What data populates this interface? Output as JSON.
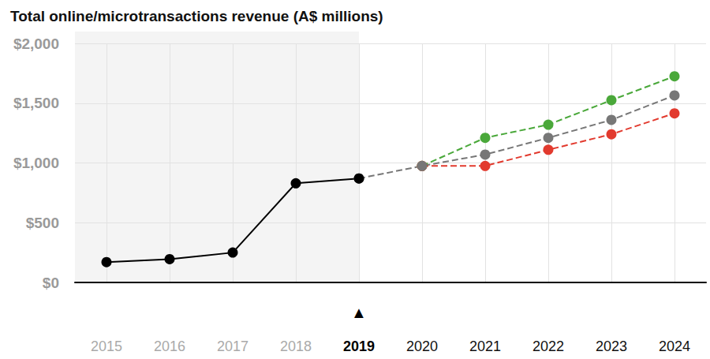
{
  "chart_data": {
    "type": "line",
    "title": "Total online/microtransactions revenue (A$ millions)",
    "categories": [
      "2015",
      "2016",
      "2017",
      "2018",
      "2019",
      "2020",
      "2021",
      "2022",
      "2023",
      "2024"
    ],
    "series": [
      {
        "color": "#4aa83a",
        "line_style": "dashed",
        "marker": "circle",
        "values": [
          null,
          null,
          null,
          null,
          null,
          975,
          1210,
          1320,
          1525,
          1725
        ]
      },
      {
        "color": "#e23a2e",
        "line_style": "dashed",
        "marker": "circle",
        "values": [
          null,
          null,
          null,
          null,
          null,
          975,
          975,
          1110,
          1240,
          1415
        ]
      },
      {
        "color": "#777777",
        "line_style": "dashed",
        "marker": "circle",
        "values": [
          null,
          null,
          null,
          null,
          870,
          975,
          1070,
          1210,
          1360,
          1565
        ]
      },
      {
        "color": "#000000",
        "line_style": "solid",
        "marker": "circle",
        "values": [
          170,
          195,
          250,
          830,
          870,
          null,
          null,
          null,
          null,
          null
        ]
      }
    ],
    "ylim": [
      0,
      2000
    ],
    "yticks": [
      {
        "value": 0,
        "label": "$0"
      },
      {
        "value": 500,
        "label": "$500"
      },
      {
        "value": 1000,
        "label": "$1,000"
      },
      {
        "value": 1500,
        "label": "$1,500"
      },
      {
        "value": 2000,
        "label": "$2,000"
      }
    ],
    "grid": true,
    "annotations": [
      {
        "x": "2019",
        "text": "▲"
      }
    ]
  }
}
